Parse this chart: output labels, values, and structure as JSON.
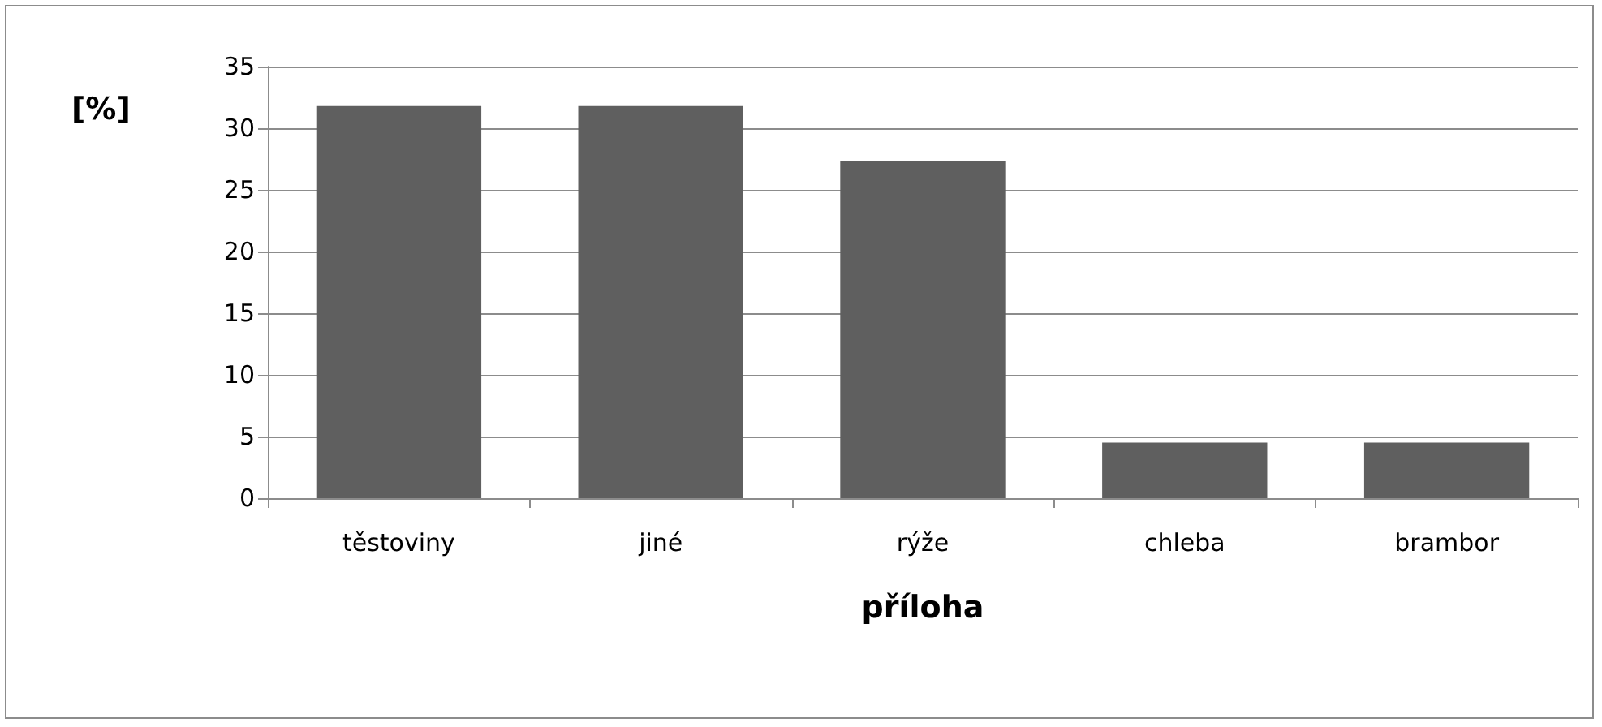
{
  "chart_data": {
    "type": "bar",
    "xlabel": "příloha",
    "ylabel": "[%]",
    "categories": [
      "těstoviny",
      "jiné",
      "rýže",
      "chleba",
      "brambor"
    ],
    "values": [
      31.8,
      31.8,
      27.3,
      4.5,
      4.5
    ],
    "color": "#5f5f5f",
    "ylim": [
      0,
      35
    ],
    "yticks": [
      0,
      5,
      10,
      15,
      20,
      25,
      30,
      35
    ],
    "grid": "y"
  }
}
